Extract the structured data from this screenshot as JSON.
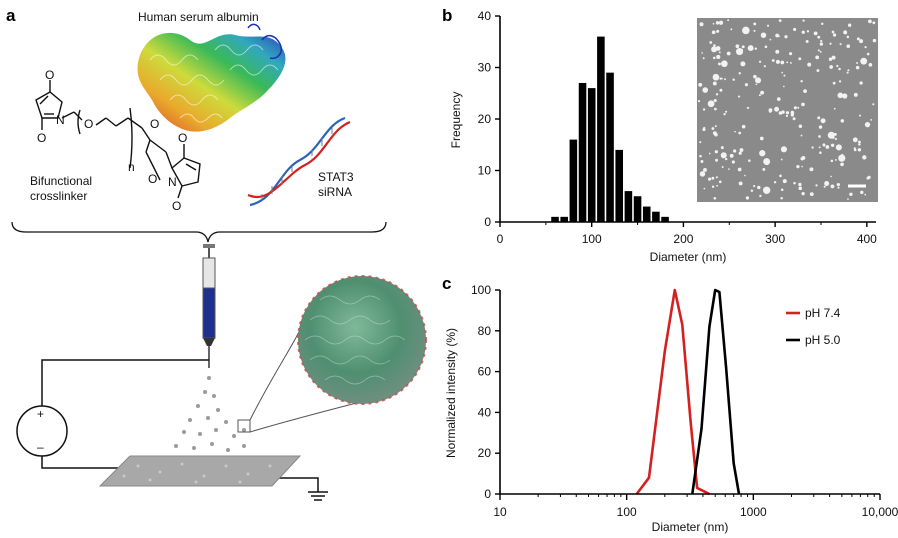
{
  "panels": {
    "a": {
      "letter": "a",
      "protein_label": "Human serum albumin",
      "crosslinker_label_1": "Bifunctional",
      "crosslinker_label_2": "crosslinker",
      "sirna_label_1": "STAT3",
      "sirna_label_2": "siRNA",
      "chem_n": "n",
      "chem_O": "O",
      "chem_N": "N",
      "plus": "+",
      "minus": "–"
    },
    "b": {
      "letter": "b"
    },
    "c": {
      "letter": "c"
    }
  },
  "colors": {
    "bars": "#000000",
    "ph74": "#d42020",
    "ph50": "#000000",
    "sem_bg": "#8a8a8a",
    "collector": "#a8a8a8",
    "syringe_fill": "#1f2f8f"
  },
  "chart_data": [
    {
      "panel": "b",
      "type": "bar",
      "xlabel": "Diameter (nm)",
      "ylabel": "Frequency",
      "xlim": [
        0,
        410
      ],
      "ylim": [
        0,
        40
      ],
      "xticks": [
        0,
        100,
        200,
        300,
        400
      ],
      "yticks": [
        0,
        10,
        20,
        30,
        40
      ],
      "bin_width": 10,
      "categories": [
        60,
        70,
        80,
        90,
        100,
        110,
        120,
        130,
        140,
        150,
        160,
        170,
        180,
        190
      ],
      "values": [
        1,
        1,
        16,
        27,
        26,
        36,
        29,
        14,
        6,
        5,
        3,
        2,
        1,
        0
      ],
      "inset": "SEM micrograph with scale bar"
    },
    {
      "panel": "c",
      "type": "line",
      "xlabel": "Diameter (nm)",
      "ylabel": "Normalized intensity (%)",
      "xscale": "log",
      "xlim": [
        10,
        10000
      ],
      "ylim": [
        0,
        100
      ],
      "xtick_labels": [
        "10",
        "100",
        "1000",
        "10,000"
      ],
      "xticks": [
        10,
        100,
        1000,
        10000
      ],
      "yticks": [
        0,
        20,
        40,
        60,
        80,
        100
      ],
      "legend_position": "top-right",
      "series": [
        {
          "name": "pH 7.4",
          "color": "#d42020",
          "x": [
            120,
            150,
            200,
            240,
            275,
            320,
            360,
            450
          ],
          "y": [
            0,
            8,
            70,
            100,
            83,
            35,
            3,
            0
          ]
        },
        {
          "name": "pH 5.0",
          "color": "#000000",
          "x": [
            330,
            390,
            450,
            500,
            540,
            610,
            700,
            770
          ],
          "y": [
            0,
            32,
            82,
            100,
            99,
            62,
            15,
            0
          ]
        }
      ]
    }
  ]
}
